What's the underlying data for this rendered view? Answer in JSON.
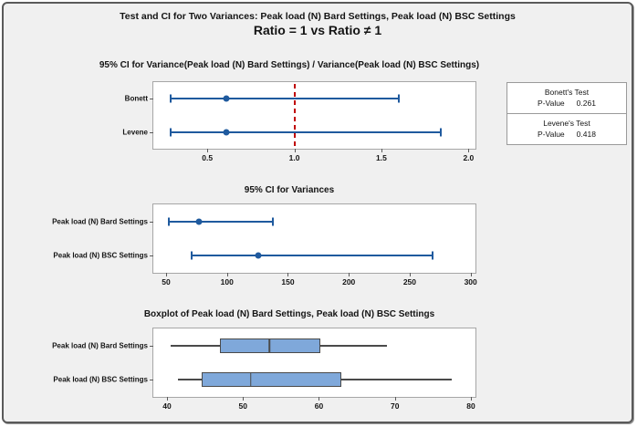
{
  "header": {
    "title_line1": "Test and CI for Two Variances: Peak load (N) Bard Settings, Peak load (N) BSC Settings",
    "title_line2": "Ratio = 1 vs Ratio ≠ 1"
  },
  "tests_panel": {
    "cells": [
      {
        "name": "Bonett's Test",
        "label": "P-Value",
        "value": "0.261"
      },
      {
        "name": "Levene's Test",
        "label": "P-Value",
        "value": "0.418"
      }
    ]
  },
  "colors": {
    "figure_background": "#f0f0f0",
    "plot_background": "#ffffff",
    "ci_blue": "#1f5a9e",
    "reference_red": "#c00000",
    "box_fill": "#7fa8da",
    "box_border": "#4a4a4a",
    "frame_border": "#a6a6a6",
    "outer_border": "#5a5a5a"
  },
  "chart_data": [
    {
      "type": "ci",
      "title": "95% CI for Variance(Peak load (N) Bard Settings) / Variance(Peak load (N) BSC Settings)",
      "categories": [
        "Bonett",
        "Levene"
      ],
      "intervals": [
        {
          "low": 0.29,
          "estimate": 0.61,
          "high": 1.6
        },
        {
          "low": 0.29,
          "estimate": 0.61,
          "high": 1.84
        }
      ],
      "reference_line": 1.0,
      "xlim": [
        0.19,
        2.04
      ],
      "xticks": [
        0.5,
        1.0,
        1.5,
        2.0
      ],
      "xtick_labels": [
        "0.5",
        "1.0",
        "1.5",
        "2.0"
      ],
      "grid": false,
      "legend": "none"
    },
    {
      "type": "ci",
      "title": "95% CI for Variances",
      "categories": [
        "Peak load (N) Bard Settings",
        "Peak load (N) BSC Settings"
      ],
      "intervals": [
        {
          "low": 52,
          "estimate": 77,
          "high": 138
        },
        {
          "low": 71,
          "estimate": 126,
          "high": 269
        }
      ],
      "reference_line": null,
      "xlim": [
        39.5,
        304
      ],
      "xticks": [
        50,
        100,
        150,
        200,
        250,
        300
      ],
      "xtick_labels": [
        "50",
        "100",
        "150",
        "200",
        "250",
        "300"
      ],
      "grid": false,
      "legend": "none"
    },
    {
      "type": "box",
      "title": "Boxplot of Peak load (N) Bard Settings, Peak load (N) BSC Settings",
      "categories": [
        "Peak load (N) Bard Settings",
        "Peak load (N) BSC Settings"
      ],
      "boxes": [
        {
          "whisker_low": 40.5,
          "q1": 47.0,
          "median": 53.5,
          "q3": 60.2,
          "whisker_high": 69.0
        },
        {
          "whisker_low": 41.5,
          "q1": 44.6,
          "median": 51.0,
          "q3": 63.0,
          "whisker_high": 77.5
        }
      ],
      "xlim": [
        38.2,
        80.6
      ],
      "xticks": [
        40,
        50,
        60,
        70,
        80
      ],
      "xtick_labels": [
        "40",
        "50",
        "60",
        "70",
        "80"
      ],
      "grid": false,
      "legend": "none"
    }
  ]
}
